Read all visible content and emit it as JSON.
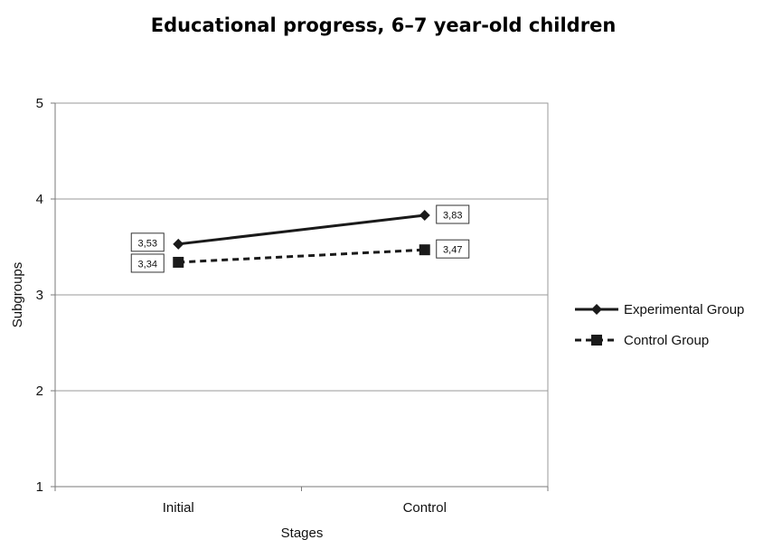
{
  "chart_data": {
    "type": "line",
    "title": "Educational progress, 6–7 year-old children",
    "xlabel": "Stages",
    "ylabel": "Subgroups",
    "categories": [
      "Initial",
      "Control"
    ],
    "ylim": [
      1,
      5
    ],
    "yticks": [
      "1",
      "2",
      "3",
      "4",
      "5"
    ],
    "grid": true,
    "legend_position": "right",
    "series": [
      {
        "name": "Experimental Group",
        "values": [
          3.53,
          3.83
        ],
        "labels": [
          "3,53",
          "3,83"
        ],
        "line_style": "solid",
        "marker": "diamond",
        "color": "#1a1a1a"
      },
      {
        "name": "Control Group",
        "values": [
          3.34,
          3.47
        ],
        "labels": [
          "3,34",
          "3,47"
        ],
        "line_style": "dashed",
        "marker": "square",
        "color": "#1a1a1a"
      }
    ]
  }
}
